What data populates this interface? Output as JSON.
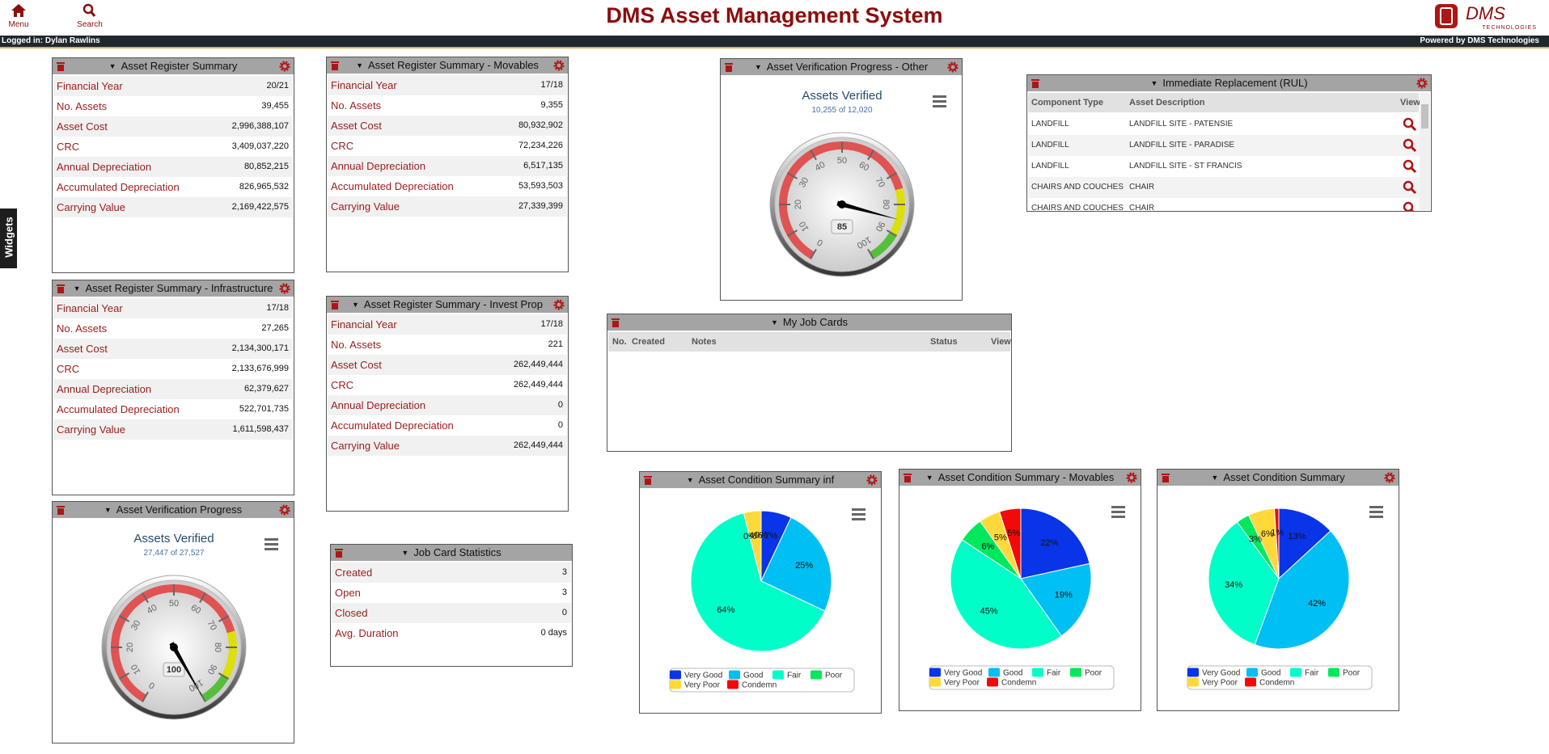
{
  "header": {
    "menu": "Menu",
    "search": "Search",
    "title": "DMS Asset Management System",
    "logo": "DMS",
    "logo_sub": "TECHNOLOGIES",
    "logged_in": "Logged in: Dylan Rawlins",
    "powered_by": "Powered by DMS Technologies"
  },
  "sidebar_tab": "Widgets",
  "widgets": [
    {
      "title": "Asset Register Summary",
      "rows": [
        [
          "Financial Year",
          "20/21"
        ],
        [
          "No. Assets",
          "39,455"
        ],
        [
          "Asset Cost",
          "2,996,388,107"
        ],
        [
          "CRC",
          "3,409,037,220"
        ],
        [
          "Annual Depreciation",
          "80,852,215"
        ],
        [
          "Accumulated Depreciation",
          "826,965,532"
        ],
        [
          "Carrying Value",
          "2,169,422,575"
        ]
      ]
    },
    {
      "title": "Asset Register Summary - Infrastructure",
      "rows": [
        [
          "Financial Year",
          "17/18"
        ],
        [
          "No. Assets",
          "27,265"
        ],
        [
          "Asset Cost",
          "2,134,300,171"
        ],
        [
          "CRC",
          "2,133,676,999"
        ],
        [
          "Annual Depreciation",
          "62,379,627"
        ],
        [
          "Accumulated Depreciation",
          "522,701,735"
        ],
        [
          "Carrying Value",
          "1,611,598,437"
        ]
      ]
    },
    {
      "title": "Asset Verification Progress",
      "chart_data": {
        "type": "gauge",
        "title": "Assets Verified",
        "subtitle": "27,447 of 27,527",
        "value": 100,
        "ylim": [
          0,
          100
        ],
        "yticks": [
          0,
          10,
          20,
          30,
          40,
          50,
          60,
          70,
          80,
          90,
          100
        ],
        "bands": [
          {
            "from": 0,
            "to": 75,
            "color": "#df5353"
          },
          {
            "from": 75,
            "to": 90,
            "color": "#dddf0d"
          },
          {
            "from": 90,
            "to": 100,
            "color": "#55bf3b"
          }
        ]
      }
    },
    {
      "title": "Asset Register Summary - Movables",
      "rows": [
        [
          "Financial Year",
          "17/18"
        ],
        [
          "No. Assets",
          "9,355"
        ],
        [
          "Asset Cost",
          "80,932,902"
        ],
        [
          "CRC",
          "72,234,226"
        ],
        [
          "Annual Depreciation",
          "6,517,135"
        ],
        [
          "Accumulated Depreciation",
          "53,593,503"
        ],
        [
          "Carrying Value",
          "27,339,399"
        ]
      ]
    },
    {
      "title": "Asset Register Summary - Invest Prop",
      "rows": [
        [
          "Financial Year",
          "17/18"
        ],
        [
          "No. Assets",
          "221"
        ],
        [
          "Asset Cost",
          "262,449,444"
        ],
        [
          "CRC",
          "262,449,444"
        ],
        [
          "Annual Depreciation",
          "0"
        ],
        [
          "Accumulated Depreciation",
          "0"
        ],
        [
          "Carrying Value",
          "262,449,444"
        ]
      ]
    },
    {
      "title": "Job Card Statistics",
      "rows": [
        [
          "Created",
          "3"
        ],
        [
          "Open",
          "3"
        ],
        [
          "Closed",
          "0"
        ],
        [
          "Avg. Duration",
          "0 days"
        ]
      ]
    },
    {
      "title": "Asset Verification Progress - Other",
      "chart_data": {
        "type": "gauge",
        "title": "Assets Verified",
        "subtitle": "10,255 of 12,020",
        "value": 85,
        "ylim": [
          0,
          100
        ],
        "yticks": [
          0,
          10,
          20,
          30,
          40,
          50,
          60,
          70,
          80,
          90,
          100
        ],
        "bands": [
          {
            "from": 0,
            "to": 75,
            "color": "#df5353"
          },
          {
            "from": 75,
            "to": 90,
            "color": "#dddf0d"
          },
          {
            "from": 90,
            "to": 100,
            "color": "#55bf3b"
          }
        ]
      }
    },
    {
      "title": "My Job Cards",
      "columns": [
        "No.",
        "Created",
        "Notes",
        "Status",
        "View"
      ],
      "grid_rows": []
    },
    {
      "title": "Immediate Replacement (RUL)",
      "columns": [
        "Component Type",
        "Asset Description",
        "View"
      ],
      "grid_rows": [
        [
          "LANDFILL",
          "LANDFILL SITE - PATENSIE"
        ],
        [
          "LANDFILL",
          "LANDFILL SITE - PARADISE"
        ],
        [
          "LANDFILL",
          "LANDFILL SITE - ST FRANCIS"
        ],
        [
          "CHAIRS AND COUCHES",
          "CHAIR"
        ],
        [
          "CHAIRS AND COUCHES",
          "CHAIR"
        ]
      ]
    },
    {
      "title": "Asset Condition Summary inf",
      "chart_data": {
        "type": "pie",
        "categories": [
          "Very Good",
          "Good",
          "Fair",
          "Poor",
          "Very Poor",
          "Condemn"
        ],
        "values": [
          7,
          25,
          64,
          0,
          4,
          0
        ],
        "value_labels": [
          "7%",
          "25%",
          "64%",
          "0%",
          "4%",
          "0%"
        ],
        "colors": [
          "#0a34e8",
          "#00bff3",
          "#00ffc8",
          "#00e85c",
          "#ffd93a",
          "#f20a0a"
        ]
      }
    },
    {
      "title": "Asset Condition Summary - Movables",
      "chart_data": {
        "type": "pie",
        "categories": [
          "Very Good",
          "Good",
          "Fair",
          "Poor",
          "Very Poor",
          "Condemn"
        ],
        "values": [
          22,
          19,
          45,
          6,
          5,
          5
        ],
        "value_labels": [
          "22%",
          "19%",
          "45%",
          "6%",
          "5%",
          "5%"
        ],
        "colors": [
          "#0a34e8",
          "#00bff3",
          "#00ffc8",
          "#00e85c",
          "#ffd93a",
          "#f20a0a"
        ]
      }
    },
    {
      "title": "Asset Condition Summary",
      "chart_data": {
        "type": "pie",
        "categories": [
          "Very Good",
          "Good",
          "Fair",
          "Poor",
          "Very Poor",
          "Condemn"
        ],
        "values": [
          13,
          42,
          34,
          3,
          6,
          1
        ],
        "value_labels": [
          "13%",
          "42%",
          "34%",
          "3%",
          "6%",
          "1%"
        ],
        "colors": [
          "#0a34e8",
          "#00bff3",
          "#00ffc8",
          "#00e85c",
          "#ffd93a",
          "#f20a0a"
        ]
      }
    }
  ]
}
